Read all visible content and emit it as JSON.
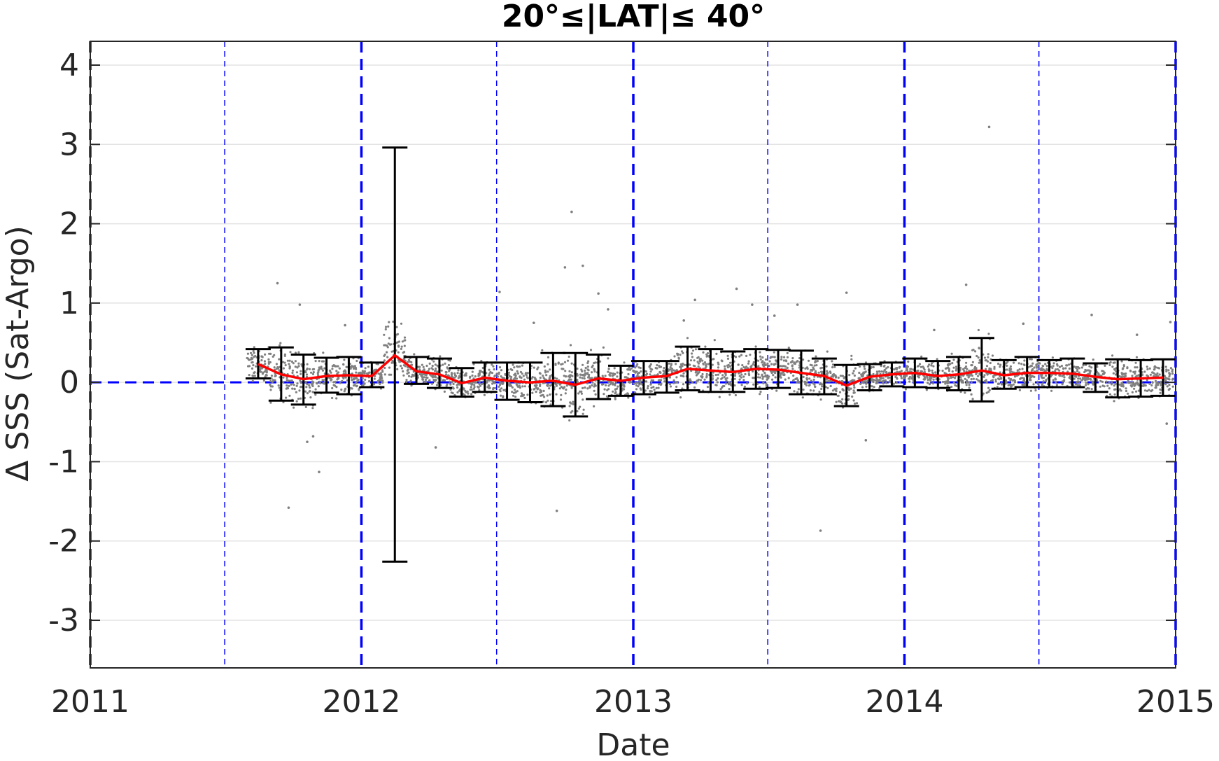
{
  "chart_data": {
    "type": "scatter",
    "title": "20°≤|LAT|≤ 40°",
    "xlabel": "Date",
    "ylabel": "Δ SSS (Sat-Argo)",
    "x_ticks": [
      "2011",
      "2012",
      "2013",
      "2014",
      "2015"
    ],
    "y_ticks": [
      "4",
      "3",
      "2",
      "1",
      "0",
      "-1",
      "-2",
      "-3"
    ],
    "xlim": [
      "2011-01-01",
      "2015-01-01"
    ],
    "ylim": [
      -3.6,
      4.3
    ],
    "grid": "horizontal",
    "colors": {
      "mean_line": "#ff0000",
      "reference_lines": "#0000ff",
      "scatter": "#808080",
      "error_bars": "#000000"
    },
    "reference_lines": {
      "zero_line": 0,
      "year_boundaries": [
        "2011-01-01",
        "2012-01-01",
        "2013-01-01",
        "2014-01-01",
        "2015-01-01"
      ],
      "half_year_lines": [
        "2011-07-01",
        "2012-07-01",
        "2013-07-01",
        "2014-07-01"
      ]
    },
    "series": [
      {
        "type": "errorbar_line",
        "points": [
          {
            "x": "2011-08-15",
            "y": 0.23,
            "low": 0.05,
            "high": 0.42
          },
          {
            "x": "2011-09-15",
            "y": 0.1,
            "low": -0.23,
            "high": 0.44
          },
          {
            "x": "2011-10-15",
            "y": 0.04,
            "low": -0.28,
            "high": 0.35
          },
          {
            "x": "2011-11-15",
            "y": 0.08,
            "low": -0.13,
            "high": 0.31
          },
          {
            "x": "2011-12-15",
            "y": 0.09,
            "low": -0.15,
            "high": 0.32
          },
          {
            "x": "2012-01-15",
            "y": 0.08,
            "low": -0.06,
            "high": 0.25
          },
          {
            "x": "2012-02-15",
            "y": 0.34,
            "low": -2.26,
            "high": 2.96
          },
          {
            "x": "2012-03-15",
            "y": 0.14,
            "low": -0.02,
            "high": 0.32
          },
          {
            "x": "2012-04-15",
            "y": 0.1,
            "low": -0.07,
            "high": 0.3
          },
          {
            "x": "2012-05-15",
            "y": -0.01,
            "low": -0.18,
            "high": 0.18
          },
          {
            "x": "2012-06-15",
            "y": 0.06,
            "low": -0.12,
            "high": 0.25
          },
          {
            "x": "2012-07-15",
            "y": 0.02,
            "low": -0.22,
            "high": 0.25
          },
          {
            "x": "2012-08-15",
            "y": 0.0,
            "low": -0.25,
            "high": 0.25
          },
          {
            "x": "2012-09-15",
            "y": 0.02,
            "low": -0.3,
            "high": 0.37
          },
          {
            "x": "2012-10-15",
            "y": -0.03,
            "low": -0.43,
            "high": 0.37
          },
          {
            "x": "2012-11-15",
            "y": 0.05,
            "low": -0.21,
            "high": 0.35
          },
          {
            "x": "2012-12-15",
            "y": 0.02,
            "low": -0.17,
            "high": 0.21
          },
          {
            "x": "2013-01-15",
            "y": 0.06,
            "low": -0.15,
            "high": 0.27
          },
          {
            "x": "2013-02-15",
            "y": 0.08,
            "low": -0.13,
            "high": 0.27
          },
          {
            "x": "2013-03-15",
            "y": 0.17,
            "low": -0.1,
            "high": 0.45
          },
          {
            "x": "2013-04-15",
            "y": 0.15,
            "low": -0.12,
            "high": 0.42
          },
          {
            "x": "2013-05-15",
            "y": 0.13,
            "low": -0.12,
            "high": 0.39
          },
          {
            "x": "2013-06-15",
            "y": 0.17,
            "low": -0.08,
            "high": 0.42
          },
          {
            "x": "2013-07-15",
            "y": 0.16,
            "low": -0.07,
            "high": 0.41
          },
          {
            "x": "2013-08-15",
            "y": 0.12,
            "low": -0.15,
            "high": 0.4
          },
          {
            "x": "2013-09-15",
            "y": 0.08,
            "low": -0.15,
            "high": 0.3
          },
          {
            "x": "2013-10-15",
            "y": -0.04,
            "low": -0.3,
            "high": 0.22
          },
          {
            "x": "2013-11-15",
            "y": 0.07,
            "low": -0.1,
            "high": 0.23
          },
          {
            "x": "2013-12-15",
            "y": 0.1,
            "low": -0.05,
            "high": 0.25
          },
          {
            "x": "2014-01-15",
            "y": 0.12,
            "low": -0.06,
            "high": 0.3
          },
          {
            "x": "2014-02-15",
            "y": 0.08,
            "low": -0.07,
            "high": 0.27
          },
          {
            "x": "2014-03-15",
            "y": 0.1,
            "low": -0.1,
            "high": 0.32
          },
          {
            "x": "2014-04-15",
            "y": 0.15,
            "low": -0.24,
            "high": 0.56
          },
          {
            "x": "2014-05-15",
            "y": 0.09,
            "low": -0.08,
            "high": 0.28
          },
          {
            "x": "2014-06-15",
            "y": 0.12,
            "low": -0.06,
            "high": 0.32
          },
          {
            "x": "2014-07-15",
            "y": 0.12,
            "low": -0.06,
            "high": 0.28
          },
          {
            "x": "2014-08-15",
            "y": 0.11,
            "low": -0.06,
            "high": 0.3
          },
          {
            "x": "2014-09-15",
            "y": 0.07,
            "low": -0.12,
            "high": 0.24
          },
          {
            "x": "2014-10-15",
            "y": 0.04,
            "low": -0.19,
            "high": 0.29
          },
          {
            "x": "2014-11-15",
            "y": 0.05,
            "low": -0.18,
            "high": 0.28
          },
          {
            "x": "2014-12-15",
            "y": 0.06,
            "low": -0.17,
            "high": 0.29
          }
        ]
      },
      {
        "type": "scatter",
        "points": [
          {
            "x": "2011-09-10",
            "y": 1.25
          },
          {
            "x": "2011-09-25",
            "y": -1.58
          },
          {
            "x": "2011-10-20",
            "y": -0.75
          },
          {
            "x": "2011-10-28",
            "y": -0.68
          },
          {
            "x": "2011-11-05",
            "y": -1.13
          },
          {
            "x": "2011-10-10",
            "y": 0.98
          },
          {
            "x": "2011-12-10",
            "y": 0.72
          },
          {
            "x": "2012-04-10",
            "y": -0.82
          },
          {
            "x": "2012-07-05",
            "y": 1.14
          },
          {
            "x": "2012-08-20",
            "y": 0.75
          },
          {
            "x": "2012-09-20",
            "y": -1.62
          },
          {
            "x": "2012-10-01",
            "y": 1.45
          },
          {
            "x": "2012-10-10",
            "y": 2.15
          },
          {
            "x": "2012-10-25",
            "y": 1.47
          },
          {
            "x": "2012-11-15",
            "y": 1.12
          },
          {
            "x": "2012-11-28",
            "y": 0.92
          },
          {
            "x": "2013-03-10",
            "y": 0.78
          },
          {
            "x": "2013-03-25",
            "y": 1.04
          },
          {
            "x": "2013-05-20",
            "y": 1.18
          },
          {
            "x": "2013-06-10",
            "y": 0.98
          },
          {
            "x": "2013-07-10",
            "y": 0.84
          },
          {
            "x": "2013-08-10",
            "y": 0.98
          },
          {
            "x": "2013-09-10",
            "y": -1.87
          },
          {
            "x": "2013-10-15",
            "y": 1.13
          },
          {
            "x": "2013-11-10",
            "y": -0.73
          },
          {
            "x": "2014-02-10",
            "y": 0.66
          },
          {
            "x": "2014-03-25",
            "y": 1.23
          },
          {
            "x": "2014-04-25",
            "y": 3.22
          },
          {
            "x": "2014-06-10",
            "y": 0.74
          },
          {
            "x": "2014-09-10",
            "y": 0.85
          },
          {
            "x": "2014-11-10",
            "y": 0.6
          },
          {
            "x": "2014-12-25",
            "y": 0.76
          },
          {
            "x": "2014-12-20",
            "y": -0.52
          }
        ]
      }
    ]
  }
}
